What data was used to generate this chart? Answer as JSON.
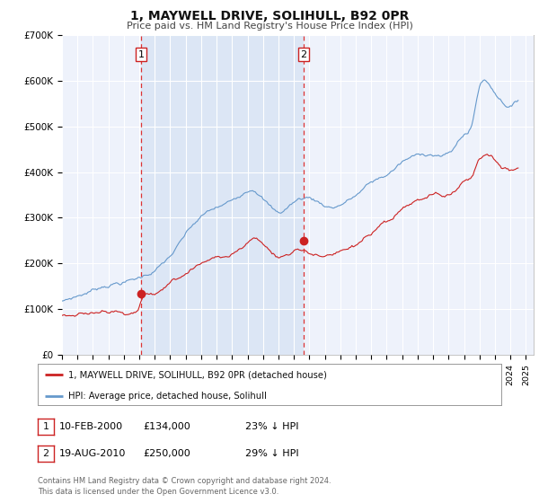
{
  "title": "1, MAYWELL DRIVE, SOLIHULL, B92 0PR",
  "subtitle": "Price paid vs. HM Land Registry's House Price Index (HPI)",
  "background_color": "#ffffff",
  "plot_bg_color": "#eef2fb",
  "shade_color": "#dce6f5",
  "grid_color": "#ffffff",
  "ylim": [
    0,
    700000
  ],
  "yticks": [
    0,
    100000,
    200000,
    300000,
    400000,
    500000,
    600000,
    700000
  ],
  "ytick_labels": [
    "£0",
    "£100K",
    "£200K",
    "£300K",
    "£400K",
    "£500K",
    "£600K",
    "£700K"
  ],
  "xlim_start": 1995.0,
  "xlim_end": 2025.5,
  "transaction1_date": 2000.11,
  "transaction1_price": 134000,
  "transaction1_label": "1",
  "transaction2_date": 2010.63,
  "transaction2_price": 250000,
  "transaction2_label": "2",
  "vline_color": "#dd3333",
  "hpi_color": "#6699cc",
  "price_color": "#cc2222",
  "marker_color": "#cc2222",
  "legend_label_price": "1, MAYWELL DRIVE, SOLIHULL, B92 0PR (detached house)",
  "legend_label_hpi": "HPI: Average price, detached house, Solihull",
  "annotation1_date": "10-FEB-2000",
  "annotation1_price": "£134,000",
  "annotation1_pct": "23% ↓ HPI",
  "annotation2_date": "19-AUG-2010",
  "annotation2_price": "£250,000",
  "annotation2_pct": "29% ↓ HPI",
  "footer": "Contains HM Land Registry data © Crown copyright and database right 2024.\nThis data is licensed under the Open Government Licence v3.0."
}
